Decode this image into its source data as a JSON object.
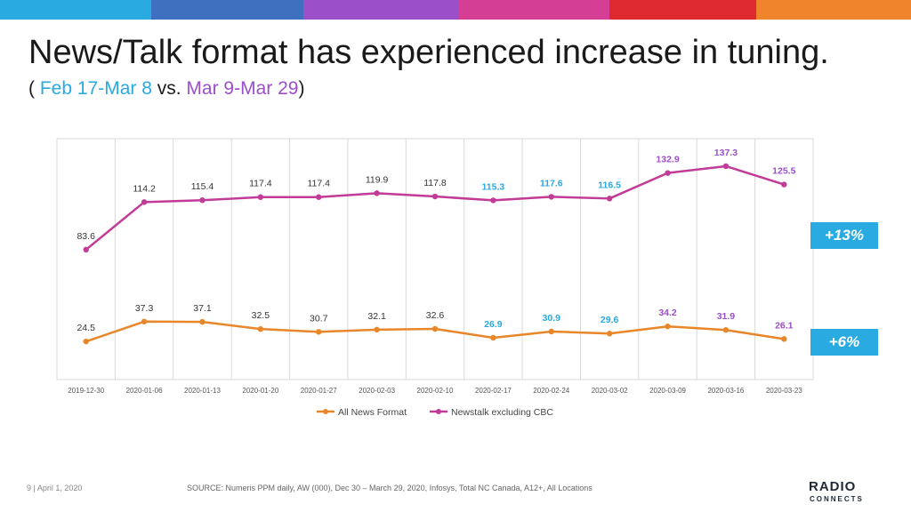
{
  "header": {
    "title": "News/Talk format has experienced increase in tuning.",
    "subtitle_open": "( ",
    "subtitle_a": "Feb 17-Mar 8",
    "subtitle_vs": " vs. ",
    "subtitle_b": "Mar 9-Mar 29",
    "subtitle_close": ")"
  },
  "colors": {
    "topbar": [
      "#29abe2",
      "#3f6fbf",
      "#9b4fc8",
      "#d43e95",
      "#de2a2f",
      "#f0842c"
    ],
    "newstalk": "#c23b97",
    "allnews": "#e8862a",
    "highlight_blue": "#29a9e0",
    "highlight_purple": "#9b4fc8",
    "badge": "#29abe2"
  },
  "badges": {
    "newstalk": "+13%",
    "allnews": "+6%"
  },
  "footer": {
    "page": "9 | April 1, 2020",
    "source": "SOURCE: Numeris PPM daily, AW (000), Dec 30 – March 29, 2020, Infosys, Total NC Canada, A12+, All Locations"
  },
  "logo": {
    "main": "RADIO",
    "sub": "CONNECTS"
  },
  "chart_data": {
    "type": "line",
    "categories": [
      "2019-12-30",
      "2020-01-06",
      "2020-01-13",
      "2020-01-20",
      "2020-01-27",
      "2020-02-03",
      "2020-02-10",
      "2020-02-17",
      "2020-02-24",
      "2020-03-02",
      "2020-03-09",
      "2020-03-16",
      "2020-03-23"
    ],
    "series": [
      {
        "name": "All News Format",
        "values": [
          24.5,
          37.3,
          37.1,
          32.5,
          30.7,
          32.1,
          32.6,
          26.9,
          30.9,
          29.6,
          34.2,
          31.9,
          26.1
        ]
      },
      {
        "name": "Newstalk excluding CBC",
        "values": [
          83.6,
          114.2,
          115.4,
          117.4,
          117.4,
          119.9,
          117.8,
          115.3,
          117.6,
          116.5,
          132.9,
          137.3,
          125.5
        ]
      }
    ],
    "label_colors": [
      "default",
      "default",
      "default",
      "default",
      "default",
      "default",
      "default",
      "blue",
      "blue",
      "blue",
      "purple",
      "purple",
      "purple"
    ],
    "ylim": [
      0,
      155
    ],
    "grid": "vertical",
    "legend": "bottom"
  }
}
